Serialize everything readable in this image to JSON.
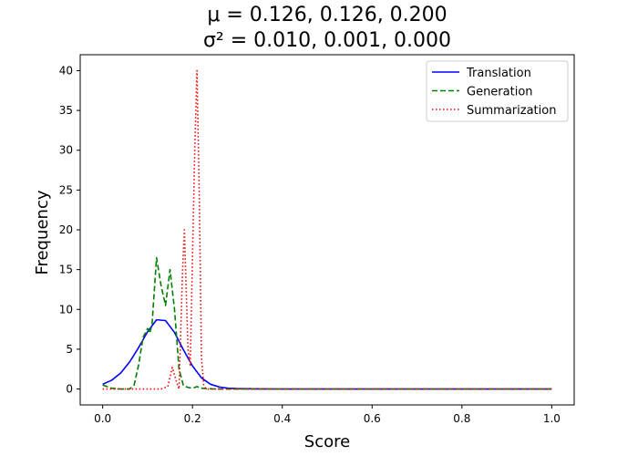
{
  "chart_data": {
    "type": "line",
    "title_lines": [
      "μ = 0.126, 0.126, 0.200",
      "σ² = 0.010, 0.001, 0.000"
    ],
    "xlabel": "Score",
    "ylabel": "Frequency",
    "xlim": [
      -0.05,
      1.05
    ],
    "ylim": [
      -2,
      42
    ],
    "xticks": [
      "0.0",
      "0.2",
      "0.4",
      "0.6",
      "0.8",
      "1.0"
    ],
    "yticks": [
      "0",
      "5",
      "10",
      "15",
      "20",
      "25",
      "30",
      "35",
      "40"
    ],
    "legend_position": "top-right",
    "series": [
      {
        "name": "Translation",
        "color": "#0000ff",
        "style": "solid",
        "points": [
          [
            0.0,
            0.6
          ],
          [
            0.02,
            1.1
          ],
          [
            0.04,
            2.0
          ],
          [
            0.06,
            3.4
          ],
          [
            0.08,
            5.2
          ],
          [
            0.1,
            7.2
          ],
          [
            0.12,
            8.7
          ],
          [
            0.14,
            8.6
          ],
          [
            0.16,
            7.1
          ],
          [
            0.18,
            4.9
          ],
          [
            0.2,
            2.9
          ],
          [
            0.22,
            1.4
          ],
          [
            0.24,
            0.6
          ],
          [
            0.26,
            0.25
          ],
          [
            0.28,
            0.1
          ],
          [
            0.3,
            0.05
          ],
          [
            0.35,
            0.01
          ],
          [
            0.4,
            0.0
          ],
          [
            0.5,
            0.0
          ],
          [
            0.6,
            0.0
          ],
          [
            0.7,
            0.0
          ],
          [
            0.8,
            0.0
          ],
          [
            0.9,
            0.0
          ],
          [
            1.0,
            0.0
          ]
        ]
      },
      {
        "name": "Generation",
        "color": "#008000",
        "style": "dashed",
        "points": [
          [
            0.0,
            0.5
          ],
          [
            0.02,
            0.1
          ],
          [
            0.04,
            0.0
          ],
          [
            0.06,
            0.0
          ],
          [
            0.07,
            0.5
          ],
          [
            0.08,
            3.0
          ],
          [
            0.09,
            6.5
          ],
          [
            0.1,
            7.6
          ],
          [
            0.105,
            7.0
          ],
          [
            0.11,
            8.2
          ],
          [
            0.12,
            16.5
          ],
          [
            0.13,
            13.0
          ],
          [
            0.14,
            10.5
          ],
          [
            0.15,
            15.0
          ],
          [
            0.16,
            10.0
          ],
          [
            0.17,
            2.5
          ],
          [
            0.18,
            0.4
          ],
          [
            0.19,
            0.2
          ],
          [
            0.2,
            0.1
          ],
          [
            0.21,
            0.3
          ],
          [
            0.22,
            0.1
          ],
          [
            0.25,
            0.0
          ],
          [
            0.3,
            0.0
          ],
          [
            0.4,
            0.0
          ],
          [
            0.5,
            0.0
          ],
          [
            0.6,
            0.0
          ],
          [
            0.7,
            0.0
          ],
          [
            0.8,
            0.0
          ],
          [
            0.9,
            0.0
          ],
          [
            1.0,
            0.0
          ]
        ]
      },
      {
        "name": "Summarization",
        "color": "#ff0000",
        "style": "dotted",
        "points": [
          [
            0.0,
            0.0
          ],
          [
            0.05,
            0.0
          ],
          [
            0.1,
            0.0
          ],
          [
            0.13,
            0.0
          ],
          [
            0.145,
            0.3
          ],
          [
            0.155,
            2.7
          ],
          [
            0.165,
            0.8
          ],
          [
            0.17,
            0.0
          ],
          [
            0.178,
            15.0
          ],
          [
            0.182,
            20.0
          ],
          [
            0.19,
            5.0
          ],
          [
            0.195,
            3.0
          ],
          [
            0.205,
            30.0
          ],
          [
            0.21,
            40.0
          ],
          [
            0.215,
            25.0
          ],
          [
            0.22,
            4.0
          ],
          [
            0.225,
            0.5
          ],
          [
            0.23,
            0.0
          ],
          [
            0.3,
            0.0
          ],
          [
            0.4,
            0.0
          ],
          [
            0.5,
            0.0
          ],
          [
            0.6,
            0.0
          ],
          [
            0.7,
            0.0
          ],
          [
            0.8,
            0.0
          ],
          [
            0.9,
            0.0
          ],
          [
            1.0,
            0.0
          ]
        ]
      }
    ]
  }
}
